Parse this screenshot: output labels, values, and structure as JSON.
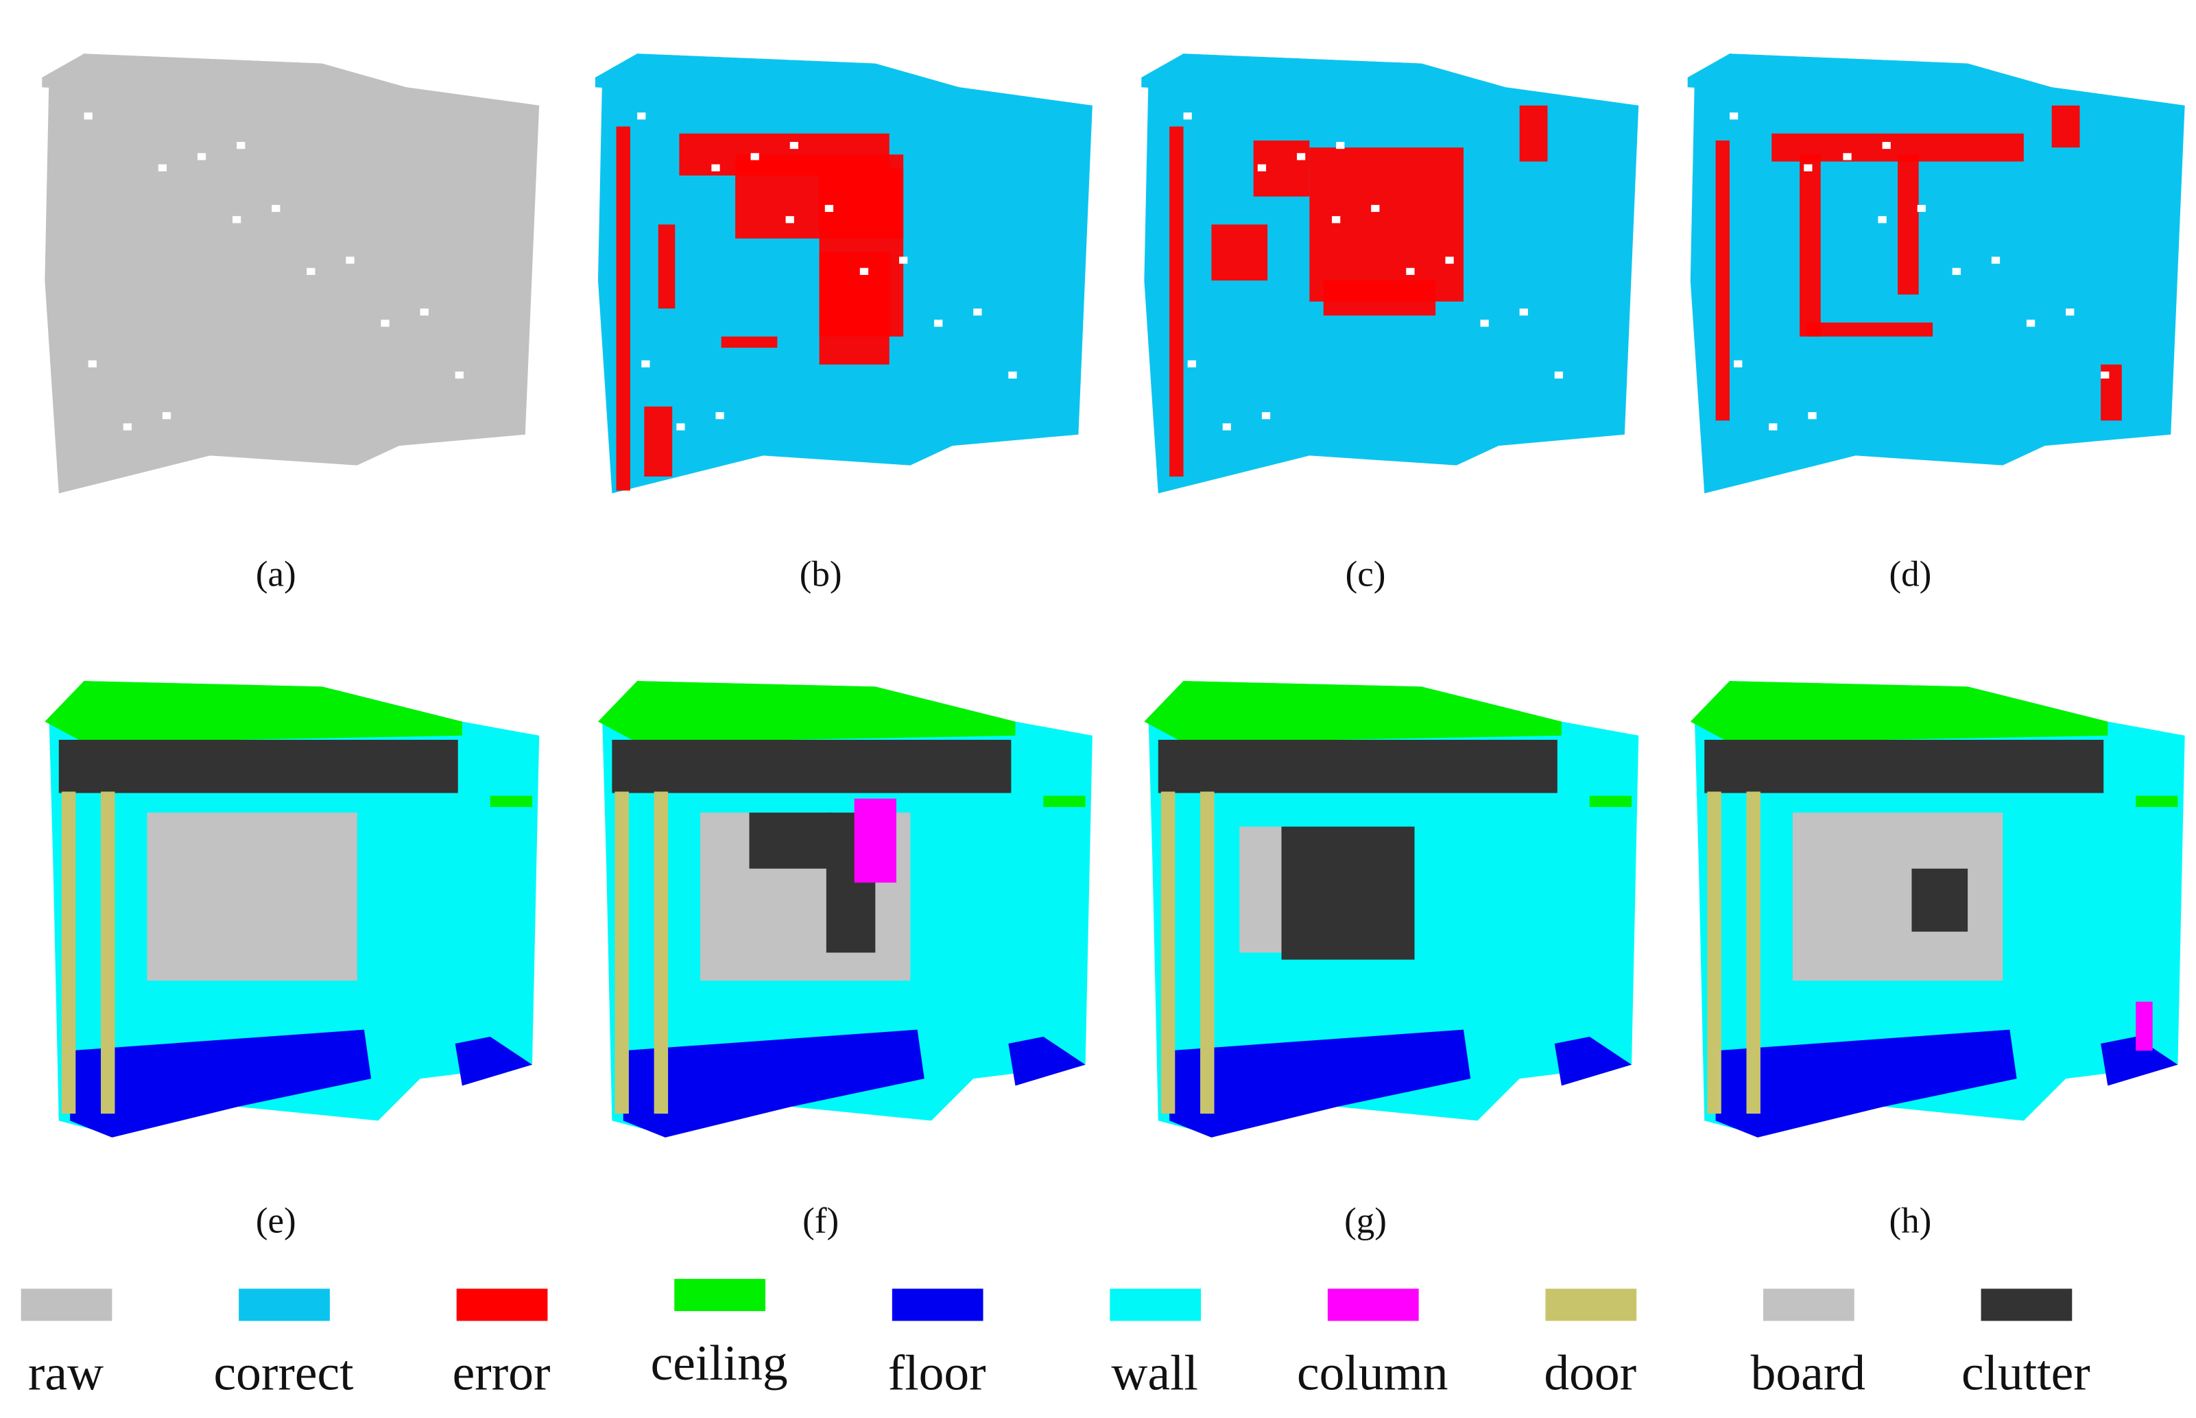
{
  "panels": {
    "labels": [
      "(a)",
      "(b)",
      "(c)",
      "(d)",
      "(e)",
      "(f)",
      "(g)",
      "(h)"
    ]
  },
  "legend": {
    "items": [
      {
        "label": "raw",
        "color": "#c0c0c0"
      },
      {
        "label": "correct",
        "color": "#0ac4ef"
      },
      {
        "label": "error",
        "color": "#ff0000"
      },
      {
        "label": "ceiling",
        "color": "#00f000"
      },
      {
        "label": "floor",
        "color": "#0000f0"
      },
      {
        "label": "wall",
        "color": "#00f8f8"
      },
      {
        "label": "column",
        "color": "#ff00ff"
      },
      {
        "label": "door",
        "color": "#c8c46c"
      },
      {
        "label": "board",
        "color": "#c2c2c2"
      },
      {
        "label": "clutter",
        "color": "#333333"
      }
    ]
  }
}
